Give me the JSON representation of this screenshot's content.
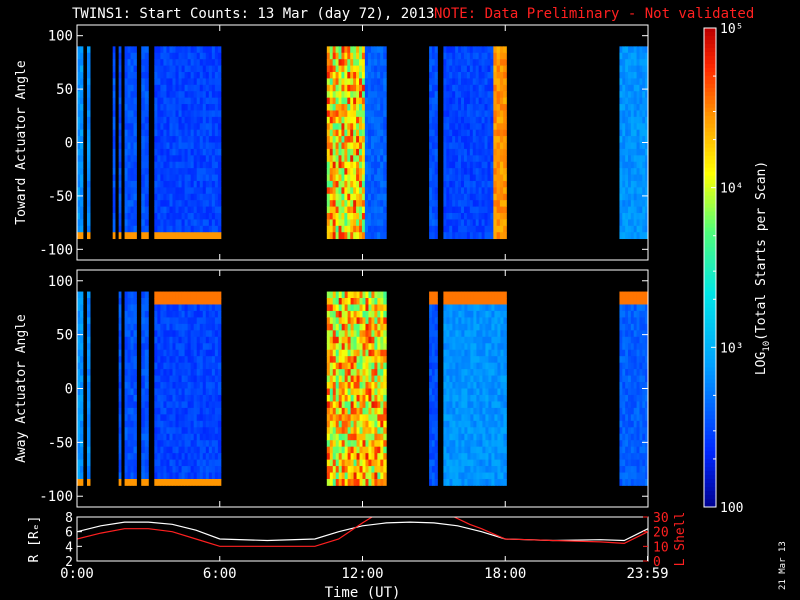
{
  "title_main": "TWINS1: Start Counts: 13 Mar (day  72), 2013",
  "title_note": "NOTE: Data Preliminary - Not validated",
  "stamp": "21 Mar 13",
  "colors": {
    "note": "#ff2020",
    "axes": "#ffffff",
    "lshell": "#ff2020",
    "rline": "#ffffff"
  },
  "chart_data": [
    {
      "type": "heatmap",
      "title": "",
      "ylabel": "Toward Actuator Angle",
      "ylim": [
        -110,
        110
      ],
      "yticks": [
        "100",
        "50",
        "0",
        "-50",
        "-100"
      ],
      "ytick_values": [
        100,
        50,
        0,
        -50,
        -100
      ],
      "xlim": [
        0,
        24
      ],
      "blocks": [
        {
          "t0": 0.0,
          "t1": 0.25,
          "kind": "cyan",
          "val": 700
        },
        {
          "t0": 0.42,
          "t1": 0.55,
          "kind": "cyan",
          "val": 600
        },
        {
          "t0": 1.5,
          "t1": 1.6,
          "kind": "blue",
          "val": 350
        },
        {
          "t0": 1.75,
          "t1": 1.85,
          "kind": "blue",
          "val": 350
        },
        {
          "t0": 2.0,
          "t1": 2.5,
          "kind": "blue",
          "val": 350
        },
        {
          "t0": 2.7,
          "t1": 3.0,
          "kind": "blue",
          "val": 350
        },
        {
          "t0": 3.25,
          "t1": 6.05,
          "kind": "blue",
          "val": 300
        },
        {
          "t0": 10.5,
          "t1": 12.1,
          "kind": "mixed",
          "val": 6000
        },
        {
          "t0": 12.1,
          "t1": 13.0,
          "kind": "blue",
          "val": 400
        },
        {
          "t0": 14.8,
          "t1": 15.15,
          "kind": "blue",
          "val": 350
        },
        {
          "t0": 15.4,
          "t1": 17.5,
          "kind": "blue",
          "val": 300
        },
        {
          "t0": 17.5,
          "t1": 18.05,
          "kind": "orange",
          "val": 6000
        },
        {
          "t0": 22.8,
          "t1": 24.0,
          "kind": "cyan",
          "val": 700
        }
      ]
    },
    {
      "type": "heatmap",
      "title": "",
      "ylabel": "Away Actuator Angle",
      "ylim": [
        -110,
        110
      ],
      "yticks": [
        "100",
        "50",
        "0",
        "-50",
        "-100"
      ],
      "ytick_values": [
        100,
        50,
        0,
        -50,
        -100
      ],
      "xlim": [
        0,
        24
      ],
      "blocks": [
        {
          "t0": 0.0,
          "t1": 0.25,
          "kind": "cyan",
          "val": 700
        },
        {
          "t0": 0.42,
          "t1": 0.55,
          "kind": "cyan",
          "val": 600
        },
        {
          "t0": 1.75,
          "t1": 1.85,
          "kind": "blue",
          "val": 350
        },
        {
          "t0": 2.0,
          "t1": 2.5,
          "kind": "blue",
          "val": 350
        },
        {
          "t0": 2.7,
          "t1": 3.0,
          "kind": "blue",
          "val": 350
        },
        {
          "t0": 3.25,
          "t1": 6.05,
          "kind": "blue",
          "val": 300
        },
        {
          "t0": 10.5,
          "t1": 13.0,
          "kind": "mixed",
          "val": 6000
        },
        {
          "t0": 14.8,
          "t1": 15.15,
          "kind": "blue",
          "val": 350
        },
        {
          "t0": 15.4,
          "t1": 18.05,
          "kind": "cyan",
          "val": 700
        },
        {
          "t0": 22.8,
          "t1": 24.0,
          "kind": "blue",
          "val": 400
        }
      ]
    },
    {
      "type": "line",
      "title": "",
      "xlabel": "Time (UT)",
      "xticks": [
        "0:00",
        "6:00",
        "12:00",
        "18:00",
        "23:59"
      ],
      "xtick_values": [
        0,
        6,
        12,
        18,
        23.98
      ],
      "xlim": [
        0,
        24
      ],
      "ylabel_left": "R [Rₑ]",
      "ylim_left": [
        2,
        8
      ],
      "yticks_left": [
        "8",
        "6",
        "4",
        "2"
      ],
      "ytick_values_left": [
        8,
        6,
        4,
        2
      ],
      "ylabel_right": "L Shell",
      "ylim_right": [
        0,
        30
      ],
      "yticks_right": [
        "30",
        "20",
        "10",
        "0"
      ],
      "ytick_values_right": [
        30,
        20,
        10,
        0
      ],
      "series": [
        {
          "axis": "left",
          "x": [
            0,
            1,
            2,
            3,
            4,
            5,
            6,
            8,
            10,
            11,
            12,
            13,
            14,
            15,
            16,
            17,
            18,
            20,
            22,
            23,
            24
          ],
          "y": [
            6.0,
            6.8,
            7.3,
            7.3,
            7.0,
            6.2,
            5.0,
            4.8,
            5.0,
            6.0,
            6.8,
            7.2,
            7.3,
            7.2,
            6.8,
            6.0,
            5.0,
            4.8,
            4.9,
            4.8,
            6.4
          ]
        },
        {
          "axis": "right",
          "x": [
            0,
            1,
            2,
            3,
            4,
            5,
            6,
            8,
            10,
            11,
            12,
            12.6,
            15.6,
            16.5,
            17,
            18,
            20,
            22,
            23,
            24
          ],
          "y": [
            15,
            19,
            22,
            22,
            20,
            15,
            10,
            10,
            10,
            15,
            26,
            32,
            32,
            25,
            22,
            15,
            14,
            13,
            12,
            20
          ]
        }
      ]
    },
    {
      "type": "colorbar",
      "label_prefix": "LOG",
      "label_sub": "10",
      "label_rest": "(Total Starts per Scan)",
      "ticks": [
        "10⁵",
        "10⁴",
        "10³",
        "100"
      ],
      "tick_values": [
        100000,
        10000,
        1000,
        100
      ],
      "range": [
        100,
        100000
      ]
    }
  ]
}
